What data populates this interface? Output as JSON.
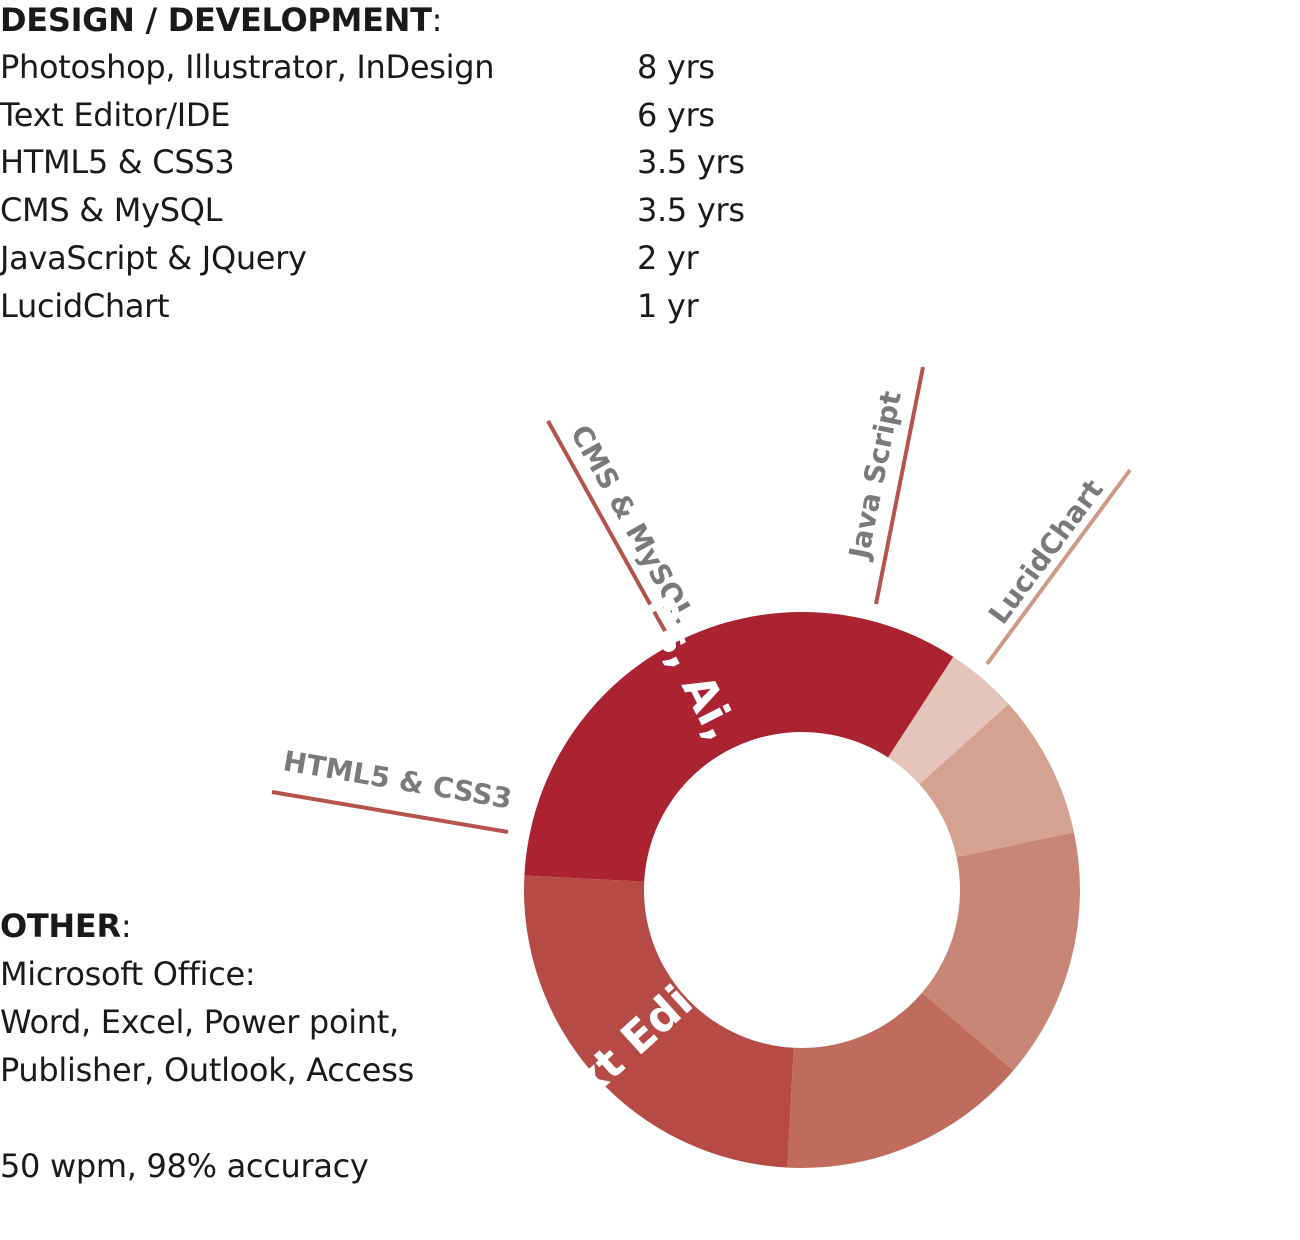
{
  "design": {
    "heading_bold": "DESIGN / DEVELOPMENT",
    "heading_colon": ":",
    "skills": [
      {
        "name": "Photoshop, Illustrator, InDesign",
        "years": "8 yrs"
      },
      {
        "name": "Text Editor/IDE",
        "years": "6 yrs"
      },
      {
        "name": "HTML5 & CSS3",
        "years": "3.5 yrs"
      },
      {
        "name": "CMS & MySQL",
        "years": "3.5 yrs"
      },
      {
        "name": "JavaScript & JQuery",
        "years": "2 yr"
      },
      {
        "name": "LucidChart",
        "years": "1 yr"
      }
    ]
  },
  "other": {
    "heading_bold": "OTHER",
    "heading_colon": ":",
    "line1": "Microsoft Office:",
    "line2": "Word, Excel, Power point,",
    "line3": "Publisher, Outlook, Access",
    "line4": "50 wpm, 98% accuracy"
  },
  "chart_data": {
    "type": "pie",
    "variant": "donut",
    "title": "",
    "slices": [
      {
        "label": "Ps, Ai, Id",
        "value": 8,
        "color": "#ab2330",
        "label_style": "inside"
      },
      {
        "label": "Text Editor",
        "value": 6,
        "color": "#b64b45",
        "label_style": "inside"
      },
      {
        "label": "HTML5 & CSS3",
        "value": 3.5,
        "color": "#bf6c5c",
        "label_style": "callout"
      },
      {
        "label": "CMS & MySQL",
        "value": 3.5,
        "color": "#c88776",
        "label_style": "callout"
      },
      {
        "label": "Java Script",
        "value": 2,
        "color": "#d5a190",
        "label_style": "callout"
      },
      {
        "label": "LucidChart",
        "value": 1,
        "color": "#e5c4b9",
        "label_style": "callout"
      }
    ],
    "callout_line_color": "#b5534c",
    "callout_text_color": "#7a7a7a"
  }
}
